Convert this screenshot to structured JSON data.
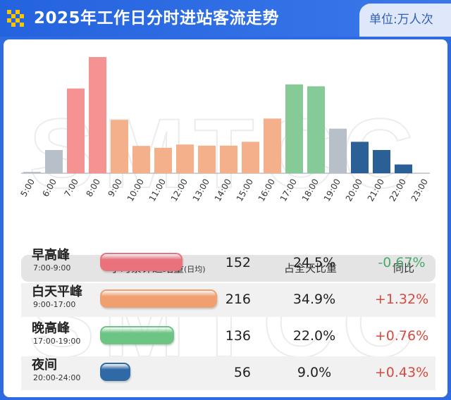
{
  "header": {
    "title": "2025年工作日分时进站客流走势",
    "unit": "单位:万人次"
  },
  "watermark": "SMTCC",
  "chart_data": {
    "type": "bar",
    "categories": [
      "5:00",
      "6:00",
      "7:00",
      "8:00",
      "9:00",
      "10:00",
      "11:00",
      "12:00",
      "13:00",
      "14:00",
      "15:00",
      "16:00",
      "17:00",
      "18:00",
      "19:00",
      "20:00",
      "21:00",
      "22:00",
      "23:00"
    ],
    "values": [
      0.5,
      8.5,
      31,
      42.5,
      19.5,
      10,
      9.3,
      10.5,
      10.1,
      10.1,
      11.5,
      20,
      32.5,
      31.8,
      16.3,
      11.5,
      8.5,
      3.2,
      0
    ],
    "period_colors": [
      "#b7c0c8",
      "#b7c0c8",
      "#f59393",
      "#f59393",
      "#f4b08a",
      "#f4b08a",
      "#f4b08a",
      "#f4b08a",
      "#f4b08a",
      "#f4b08a",
      "#f4b08a",
      "#f4b08a",
      "#86cb97",
      "#86cb97",
      "#b7c0c8",
      "#2a6096",
      "#2a6096",
      "#2a6096",
      "#2a6096"
    ],
    "title": "",
    "xlabel": "",
    "ylabel": "",
    "grid": false,
    "legend": "none"
  },
  "table": {
    "headers": {
      "cumulative": "小时累计进站量",
      "cumulative_note": "(日均)",
      "share": "占全天比重",
      "yoy": "同比"
    },
    "rows": [
      {
        "name": "早高峰",
        "time": "7:00-9:00",
        "value": "152",
        "amount": 152,
        "share": "24.5%",
        "yoy": "-0.67%",
        "color": "#e9727c"
      },
      {
        "name": "白天平峰",
        "time": "9:00-17:00",
        "value": "216",
        "amount": 216,
        "share": "34.9%",
        "yoy": "+1.32%",
        "color": "#f0a070"
      },
      {
        "name": "晚高峰",
        "time": "17:00-19:00",
        "value": "136",
        "amount": 136,
        "share": "22.0%",
        "yoy": "+0.76%",
        "color": "#6cc585"
      },
      {
        "name": "夜间",
        "time": "20:00-24:00",
        "value": "56",
        "amount": 56,
        "share": "9.0%",
        "yoy": "+0.43%",
        "color": "#2f6aa6"
      }
    ]
  }
}
